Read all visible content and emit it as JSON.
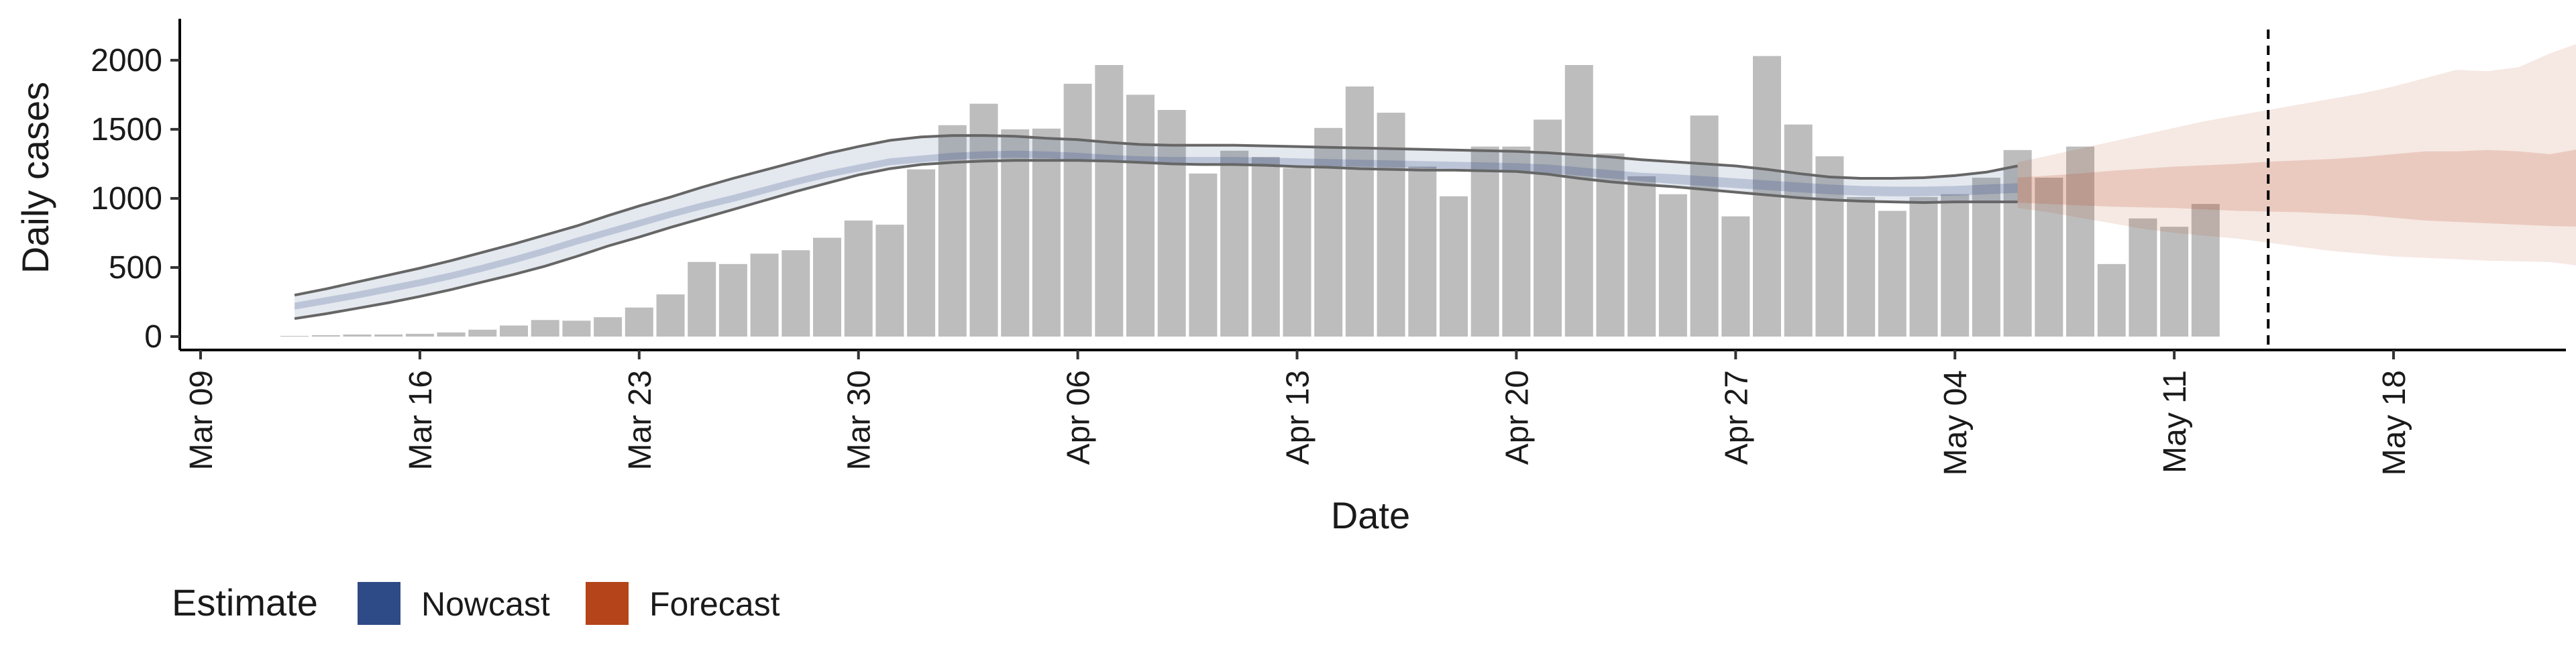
{
  "chart_data": {
    "type": "bar",
    "xlabel": "Date",
    "ylabel": "Daily cases",
    "ylim": [
      0,
      2300
    ],
    "y_ticks": [
      0,
      500,
      1000,
      1500,
      2000
    ],
    "x_ticks": [
      {
        "label": "Mar 09",
        "day": 0
      },
      {
        "label": "Mar 16",
        "day": 7
      },
      {
        "label": "Mar 23",
        "day": 14
      },
      {
        "label": "Mar 30",
        "day": 21
      },
      {
        "label": "Apr 06",
        "day": 28
      },
      {
        "label": "Apr 13",
        "day": 35
      },
      {
        "label": "Apr 20",
        "day": 42
      },
      {
        "label": "Apr 27",
        "day": 49
      },
      {
        "label": "May 04",
        "day": 56
      },
      {
        "label": "May 11",
        "day": 63
      },
      {
        "label": "May 18",
        "day": 70
      }
    ],
    "xlim_days": [
      -1,
      75.5
    ],
    "vline_day": 66,
    "bars": {
      "start_day": 3,
      "values": [
        5,
        10,
        15,
        15,
        20,
        30,
        50,
        80,
        120,
        115,
        140,
        210,
        305,
        540,
        525,
        600,
        625,
        715,
        840,
        810,
        1210,
        1530,
        1685,
        1500,
        1505,
        1830,
        1965,
        1750,
        1640,
        1180,
        1345,
        1300,
        1220,
        1510,
        1810,
        1620,
        1230,
        1015,
        1375,
        1375,
        1570,
        1965,
        1325,
        1160,
        1030,
        1600,
        870,
        2030,
        1535,
        1305,
        1010,
        910,
        1010,
        1030,
        1150,
        1350,
        1150,
        1375,
        525,
        855,
        795,
        960
      ]
    },
    "nowcast": {
      "name": "Nowcast",
      "color": "#2E4A87",
      "start_day": 3,
      "median": [
        220,
        260,
        300,
        345,
        390,
        440,
        495,
        555,
        620,
        690,
        755,
        820,
        885,
        945,
        1000,
        1060,
        1120,
        1175,
        1220,
        1265,
        1285,
        1305,
        1315,
        1320,
        1315,
        1305,
        1290,
        1280,
        1275,
        1275,
        1275,
        1270,
        1265,
        1260,
        1255,
        1250,
        1245,
        1240,
        1235,
        1230,
        1215,
        1195,
        1175,
        1155,
        1140,
        1125,
        1110,
        1095,
        1080,
        1065,
        1055,
        1050,
        1050,
        1055,
        1065,
        1075
      ],
      "inner_lower": [
        195,
        235,
        275,
        320,
        365,
        415,
        470,
        530,
        595,
        665,
        730,
        795,
        860,
        920,
        975,
        1035,
        1095,
        1150,
        1195,
        1240,
        1260,
        1280,
        1290,
        1295,
        1290,
        1280,
        1265,
        1255,
        1250,
        1250,
        1250,
        1245,
        1240,
        1235,
        1230,
        1225,
        1220,
        1215,
        1210,
        1205,
        1185,
        1165,
        1145,
        1125,
        1105,
        1090,
        1075,
        1060,
        1045,
        1030,
        1020,
        1015,
        1015,
        1020,
        1030,
        1040
      ],
      "inner_upper": [
        245,
        285,
        325,
        370,
        415,
        465,
        520,
        580,
        645,
        715,
        780,
        845,
        910,
        970,
        1025,
        1085,
        1145,
        1200,
        1245,
        1290,
        1310,
        1330,
        1340,
        1345,
        1340,
        1330,
        1315,
        1305,
        1300,
        1300,
        1300,
        1295,
        1290,
        1285,
        1280,
        1275,
        1270,
        1265,
        1260,
        1255,
        1245,
        1225,
        1205,
        1185,
        1175,
        1160,
        1145,
        1130,
        1115,
        1100,
        1090,
        1085,
        1085,
        1090,
        1100,
        1110
      ],
      "lower": [
        130,
        165,
        205,
        245,
        290,
        340,
        395,
        450,
        510,
        580,
        655,
        720,
        790,
        855,
        920,
        985,
        1050,
        1110,
        1170,
        1215,
        1245,
        1260,
        1270,
        1275,
        1275,
        1275,
        1270,
        1260,
        1250,
        1245,
        1245,
        1240,
        1230,
        1225,
        1215,
        1210,
        1205,
        1205,
        1200,
        1195,
        1175,
        1145,
        1120,
        1100,
        1085,
        1065,
        1045,
        1025,
        1005,
        990,
        980,
        975,
        970,
        975,
        975,
        975
      ],
      "upper": [
        300,
        345,
        395,
        445,
        495,
        550,
        610,
        670,
        735,
        800,
        875,
        945,
        1010,
        1080,
        1145,
        1205,
        1265,
        1325,
        1375,
        1420,
        1445,
        1455,
        1455,
        1450,
        1435,
        1425,
        1405,
        1390,
        1385,
        1385,
        1385,
        1380,
        1375,
        1370,
        1365,
        1360,
        1355,
        1350,
        1345,
        1340,
        1330,
        1315,
        1300,
        1280,
        1265,
        1250,
        1235,
        1210,
        1180,
        1155,
        1145,
        1145,
        1150,
        1165,
        1190,
        1235
      ]
    },
    "forecast": {
      "name": "Forecast",
      "color": "#B5441A",
      "start_day": 58,
      "median": [
        1080,
        1085,
        1090,
        1095,
        1100,
        1110,
        1115,
        1120,
        1125,
        1125,
        1130,
        1130,
        1130,
        1125,
        1120,
        1120,
        1110,
        1105,
        1100,
        1095
      ],
      "inner_lower": [
        970,
        960,
        950,
        940,
        935,
        930,
        920,
        910,
        905,
        900,
        890,
        880,
        860,
        840,
        830,
        820,
        810,
        800,
        795,
        800
      ],
      "inner_upper": [
        1150,
        1165,
        1180,
        1200,
        1215,
        1230,
        1240,
        1250,
        1265,
        1275,
        1285,
        1300,
        1320,
        1340,
        1340,
        1350,
        1340,
        1320,
        1360,
        1380
      ],
      "lower": [
        930,
        900,
        860,
        820,
        780,
        750,
        730,
        710,
        680,
        650,
        620,
        600,
        580,
        570,
        560,
        550,
        545,
        540,
        510,
        490
      ],
      "upper": [
        1260,
        1310,
        1360,
        1410,
        1460,
        1510,
        1560,
        1600,
        1640,
        1680,
        1720,
        1760,
        1810,
        1870,
        1930,
        1920,
        1950,
        2050,
        2130,
        2180
      ]
    },
    "legend": {
      "title": "Estimate",
      "placement": "bottom-left",
      "items": [
        {
          "label": "Nowcast",
          "color": "#2E4A87"
        },
        {
          "label": "Forecast",
          "color": "#B5441A"
        }
      ]
    },
    "bar_color": "#BDBDBD",
    "line_color": "#666666",
    "grid": false
  }
}
